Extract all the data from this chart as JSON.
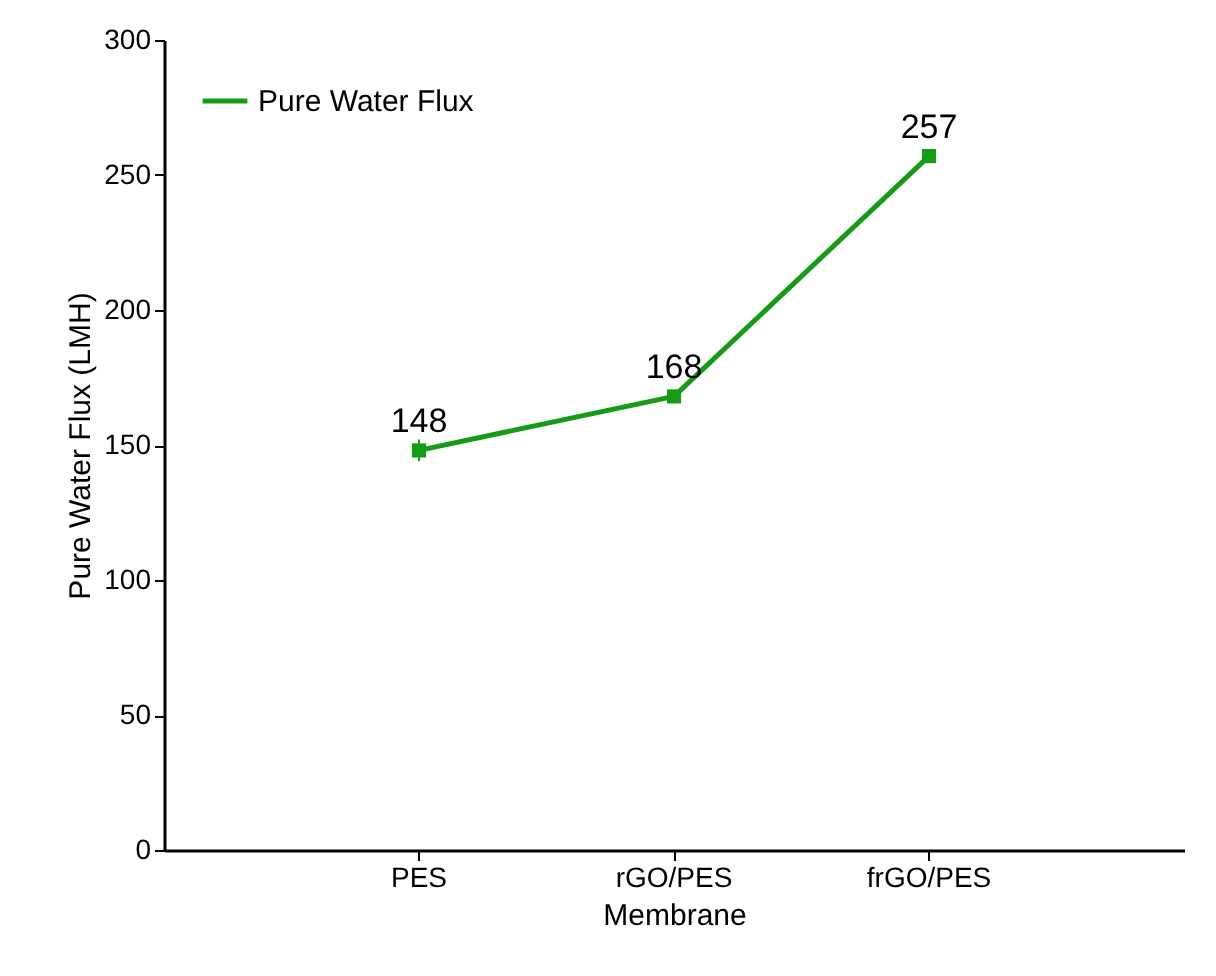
{
  "chart_data": {
    "type": "line",
    "xlabel": "Membrane",
    "ylabel": "Pure Water Flux (LMH)",
    "categories": [
      "PES",
      "rGO/PES",
      "frGO/PES"
    ],
    "series": [
      {
        "name": "Pure Water Flux",
        "color": "#169b16",
        "values": [
          148,
          168,
          257
        ],
        "errors": [
          4,
          null,
          null
        ]
      }
    ],
    "ylim": [
      0,
      300
    ],
    "yticks": [
      0,
      50,
      100,
      150,
      200,
      250,
      300
    ],
    "data_labels": true,
    "legend": "top left",
    "marker": "square",
    "line_style": "solid",
    "grid": false
  }
}
